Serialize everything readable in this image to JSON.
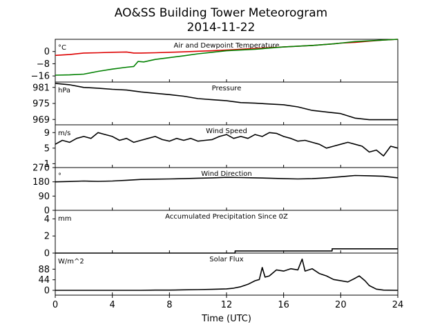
{
  "title": "AO&SS Building Tower Meteorogram",
  "subtitle": "2014-11-22",
  "xlabel": "Time (UTC)",
  "colors": {
    "temperature": "#dd0000",
    "dewpoint": "#008000",
    "default": "#000000"
  },
  "chart_data": [
    {
      "type": "line",
      "title": "Air and Dewpoint Temperature",
      "ylabel": "°C",
      "xlim": [
        0,
        24
      ],
      "ylim": [
        -20,
        8
      ],
      "yticks": [
        "0",
        "−8",
        "−16"
      ],
      "ytick_values": [
        0,
        -8,
        -16
      ],
      "series": [
        {
          "color": "temperature",
          "x": [
            0,
            1,
            2,
            3,
            4,
            5,
            5.5,
            6,
            7,
            8,
            9,
            10,
            11,
            12,
            14,
            16,
            18,
            19.5,
            20,
            21,
            22,
            23,
            24
          ],
          "y": [
            -2.5,
            -2,
            -1,
            -0.8,
            -0.5,
            -0.3,
            -1,
            -1,
            -0.8,
            -0.5,
            -0.2,
            0.2,
            0.5,
            1,
            2,
            3,
            4,
            5,
            5.5,
            6,
            6.8,
            7.5,
            8
          ]
        },
        {
          "color": "dewpoint",
          "x": [
            0,
            1,
            2,
            3,
            4,
            5,
            5.5,
            5.8,
            6.2,
            7,
            8,
            9,
            10,
            11,
            12,
            14,
            16,
            18,
            19.5,
            20,
            21,
            22,
            23,
            24
          ],
          "y": [
            -15.5,
            -15.3,
            -14.8,
            -13,
            -11.5,
            -10.3,
            -9.8,
            -6.5,
            -6.8,
            -5.2,
            -4,
            -2.8,
            -1.5,
            -0.5,
            0.5,
            1.5,
            3,
            4,
            5,
            5.5,
            6.5,
            7,
            7.5,
            8
          ]
        }
      ]
    },
    {
      "type": "line",
      "title": "Pressure",
      "ylabel": "hPa",
      "xlim": [
        0,
        24
      ],
      "ylim": [
        967,
        983
      ],
      "yticks": [
        "981",
        "975",
        "969"
      ],
      "ytick_values": [
        981,
        975,
        969
      ],
      "series": [
        {
          "color": "default",
          "x": [
            0,
            1,
            2,
            3,
            4,
            5,
            6,
            7,
            8,
            9,
            10,
            11,
            12,
            13,
            14,
            15,
            16,
            17,
            18,
            19,
            20,
            21,
            22,
            23,
            24
          ],
          "y": [
            982.5,
            982,
            981,
            980.7,
            980.3,
            980,
            979.3,
            978.8,
            978.3,
            977.7,
            976.8,
            976.4,
            976,
            975.3,
            975.1,
            974.8,
            974.5,
            973.7,
            972.4,
            971.8,
            971.2,
            969.5,
            968.9,
            968.9,
            968.9
          ]
        }
      ]
    },
    {
      "type": "line",
      "title": "Wind Speed",
      "ylabel": "m/s",
      "xlim": [
        0,
        24
      ],
      "ylim": [
        0,
        11
      ],
      "yticks": [
        "9",
        "5",
        "1"
      ],
      "ytick_values": [
        9,
        5,
        1
      ],
      "series": [
        {
          "color": "default",
          "x": [
            0,
            0.5,
            1,
            1.5,
            2,
            2.5,
            3,
            3.5,
            4,
            4.5,
            5,
            5.5,
            6,
            6.5,
            7,
            7.5,
            8,
            8.5,
            9,
            9.5,
            10,
            10.5,
            11,
            11.5,
            12,
            12.5,
            13,
            13.5,
            14,
            14.5,
            15,
            15.5,
            16,
            16.5,
            17,
            17.5,
            18,
            18.5,
            19,
            19.5,
            20,
            20.5,
            21,
            21.5,
            22,
            22.5,
            23,
            23.5,
            24
          ],
          "y": [
            6,
            7,
            6.5,
            7.5,
            8,
            7.5,
            9,
            8.5,
            8,
            7,
            7.5,
            6.5,
            7,
            7.5,
            8,
            7.2,
            6.8,
            7.5,
            7,
            7.5,
            6.8,
            7,
            7.2,
            8,
            8.5,
            7.5,
            8,
            7.5,
            8.5,
            8,
            9,
            8.8,
            8,
            7.5,
            6.8,
            7,
            6.5,
            6,
            5,
            5.5,
            6,
            6.5,
            6,
            5.5,
            4,
            4.5,
            3,
            5.5,
            5
          ]
        }
      ]
    },
    {
      "type": "line",
      "title": "Wind Direction",
      "ylabel": "°",
      "xlim": [
        0,
        24
      ],
      "ylim": [
        0,
        270
      ],
      "yticks": [
        "270",
        "180",
        "90",
        "0"
      ],
      "ytick_values": [
        270,
        180,
        90,
        0
      ],
      "series": [
        {
          "color": "default",
          "x": [
            0,
            1,
            2,
            3,
            4,
            5,
            6,
            7,
            8,
            9,
            10,
            11,
            12,
            13,
            14,
            15,
            16,
            17,
            18,
            19,
            20,
            21,
            22,
            23,
            24
          ],
          "y": [
            180,
            182,
            185,
            183,
            185,
            190,
            195,
            197,
            198,
            200,
            203,
            205,
            208,
            207,
            205,
            203,
            200,
            198,
            200,
            205,
            212,
            220,
            218,
            215,
            205
          ]
        }
      ]
    },
    {
      "type": "line",
      "title": "Accumulated Precipitation Since 0Z",
      "ylabel": "mm",
      "xlim": [
        0,
        24
      ],
      "ylim": [
        0,
        5
      ],
      "yticks": [
        "4",
        "2",
        "0"
      ],
      "ytick_values": [
        4,
        2,
        0
      ],
      "series": [
        {
          "color": "default",
          "step": true,
          "x": [
            0,
            12.6,
            12.6,
            19.4,
            19.4,
            24
          ],
          "y": [
            0,
            0,
            0.25,
            0.25,
            0.5,
            0.5
          ]
        }
      ]
    },
    {
      "type": "line",
      "title": "Solar Flux",
      "ylabel": "W/m^2",
      "xlim": [
        0,
        24
      ],
      "ylim": [
        -20,
        155
      ],
      "yticks": [
        "88",
        "44",
        "0"
      ],
      "ytick_values": [
        88,
        44,
        0
      ],
      "series": [
        {
          "color": "default",
          "x": [
            0,
            6,
            7,
            8,
            9,
            10,
            11,
            12,
            12.5,
            13,
            13.5,
            14,
            14.3,
            14.5,
            14.7,
            15,
            15.5,
            16,
            16.5,
            17,
            17.3,
            17.5,
            18,
            18.5,
            19,
            19.5,
            20,
            20.5,
            21,
            21.3,
            21.7,
            22,
            22.5,
            23,
            24
          ],
          "y": [
            0,
            0,
            1,
            1,
            2,
            3,
            4,
            6,
            9,
            15,
            25,
            40,
            45,
            95,
            55,
            60,
            85,
            80,
            90,
            85,
            130,
            80,
            90,
            70,
            60,
            45,
            40,
            35,
            50,
            60,
            40,
            20,
            5,
            1,
            0
          ]
        }
      ]
    }
  ],
  "xticks": [
    "0",
    "4",
    "8",
    "12",
    "16",
    "20",
    "24"
  ]
}
